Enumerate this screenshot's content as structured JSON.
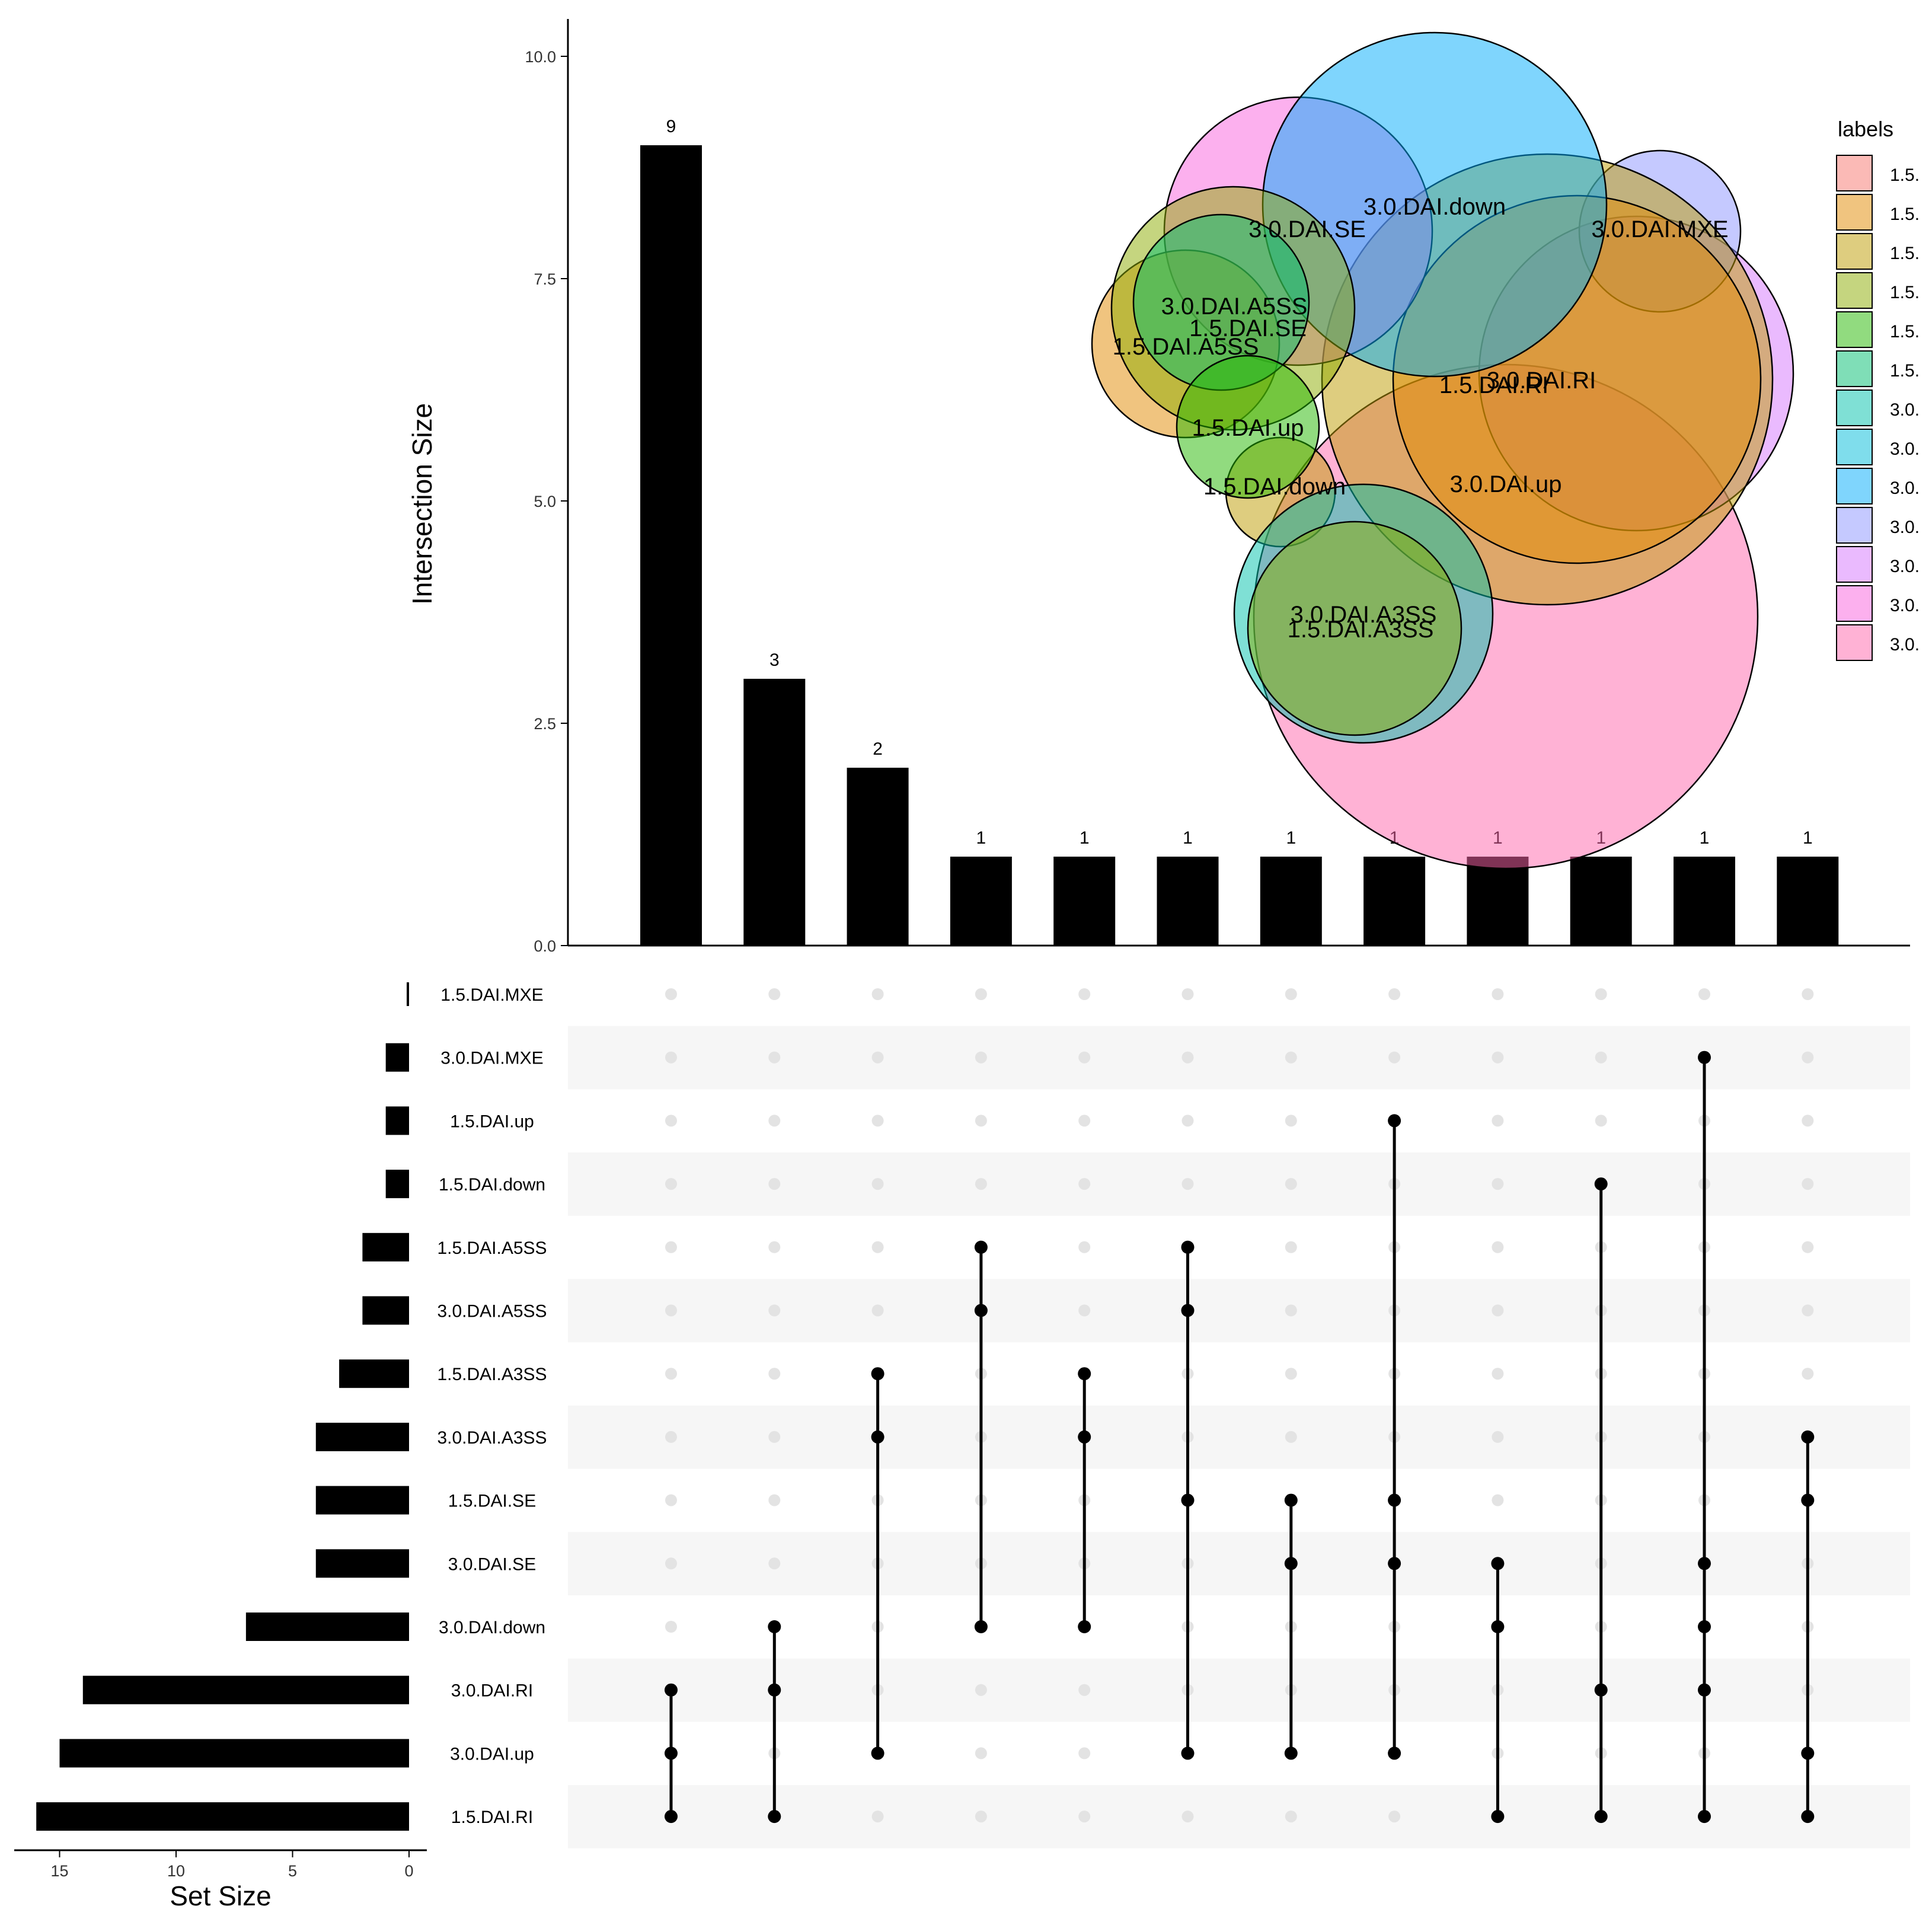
{
  "chart_data": {
    "type": "upset",
    "intersection_axis_label": "Intersection Size",
    "intersection_ylim": [
      0,
      10
    ],
    "intersection_ticks": [
      "0.0",
      "2.5",
      "5.0",
      "7.5",
      "10.0"
    ],
    "setsize_axis_label": "Set Size",
    "setsize_xlim": [
      0,
      17
    ],
    "setsize_ticks": [
      15,
      10,
      5,
      0
    ],
    "sets": [
      {
        "name": "1.5.DAI.MXE",
        "size": 0
      },
      {
        "name": "3.0.DAI.MXE",
        "size": 1
      },
      {
        "name": "1.5.DAI.up",
        "size": 1
      },
      {
        "name": "1.5.DAI.down",
        "size": 1
      },
      {
        "name": "1.5.DAI.A5SS",
        "size": 2
      },
      {
        "name": "3.0.DAI.A5SS",
        "size": 2
      },
      {
        "name": "1.5.DAI.A3SS",
        "size": 3
      },
      {
        "name": "3.0.DAI.A3SS",
        "size": 4
      },
      {
        "name": "1.5.DAI.SE",
        "size": 4
      },
      {
        "name": "3.0.DAI.SE",
        "size": 4
      },
      {
        "name": "3.0.DAI.down",
        "size": 7
      },
      {
        "name": "3.0.DAI.RI",
        "size": 14
      },
      {
        "name": "3.0.DAI.up",
        "size": 15
      },
      {
        "name": "1.5.DAI.RI",
        "size": 16
      }
    ],
    "intersections": [
      {
        "size": 9,
        "label": "9",
        "members": [
          "3.0.DAI.RI",
          "3.0.DAI.up",
          "1.5.DAI.RI"
        ]
      },
      {
        "size": 3,
        "label": "3",
        "members": [
          "3.0.DAI.down",
          "3.0.DAI.RI",
          "1.5.DAI.RI"
        ]
      },
      {
        "size": 2,
        "label": "2",
        "members": [
          "1.5.DAI.A3SS",
          "3.0.DAI.A3SS",
          "3.0.DAI.up"
        ]
      },
      {
        "size": 1,
        "label": "1",
        "members": [
          "1.5.DAI.A5SS",
          "3.0.DAI.A5SS",
          "3.0.DAI.down"
        ]
      },
      {
        "size": 1,
        "label": "1",
        "members": [
          "1.5.DAI.A3SS",
          "3.0.DAI.A3SS",
          "3.0.DAI.down"
        ]
      },
      {
        "size": 1,
        "label": "1",
        "members": [
          "1.5.DAI.A5SS",
          "3.0.DAI.A5SS",
          "1.5.DAI.SE",
          "3.0.DAI.up"
        ]
      },
      {
        "size": 1,
        "label": "1",
        "members": [
          "1.5.DAI.SE",
          "3.0.DAI.SE",
          "3.0.DAI.up"
        ]
      },
      {
        "size": 1,
        "label": "1",
        "members": [
          "1.5.DAI.up",
          "1.5.DAI.SE",
          "3.0.DAI.SE",
          "3.0.DAI.up"
        ]
      },
      {
        "size": 1,
        "label": "1",
        "members": [
          "3.0.DAI.SE",
          "3.0.DAI.down",
          "1.5.DAI.RI"
        ]
      },
      {
        "size": 1,
        "label": "1",
        "members": [
          "1.5.DAI.down",
          "3.0.DAI.RI",
          "1.5.DAI.RI"
        ]
      },
      {
        "size": 1,
        "label": "1",
        "members": [
          "3.0.DAI.MXE",
          "3.0.DAI.SE",
          "3.0.DAI.down",
          "3.0.DAI.RI",
          "1.5.DAI.RI"
        ]
      },
      {
        "size": 1,
        "label": "1",
        "members": [
          "3.0.DAI.A3SS",
          "1.5.DAI.SE",
          "3.0.DAI.up",
          "1.5.DAI.RI"
        ]
      }
    ],
    "venn_inset": {
      "legend_title": "labels",
      "legend_entries": [
        {
          "label": "1.5.",
          "color": "#F8766D"
        },
        {
          "label": "1.5.",
          "color": "#E18A00"
        },
        {
          "label": "1.5.",
          "color": "#BE9C00"
        },
        {
          "label": "1.5.",
          "color": "#8CAB00"
        },
        {
          "label": "1.5.",
          "color": "#24B700"
        },
        {
          "label": "1.5.",
          "color": "#00BE70"
        },
        {
          "label": "3.0.",
          "color": "#00C1AB"
        },
        {
          "label": "3.0.",
          "color": "#00BBDA"
        },
        {
          "label": "3.0.",
          "color": "#00ACFC"
        },
        {
          "label": "3.0.",
          "color": "#8B93FF"
        },
        {
          "label": "3.0.",
          "color": "#D575FE"
        },
        {
          "label": "3.0.",
          "color": "#F962DD"
        },
        {
          "label": "3.0.",
          "color": "#FF65AC"
        }
      ],
      "circles": [
        {
          "label": "3.0.DAI.up",
          "color": "#FF65AC"
        },
        {
          "label": "3.0.DAI.MXE",
          "color": "#D575FE"
        },
        {
          "label": "3.0.DAI.MXE",
          "color": "#8B93FF",
          "show_label": true
        },
        {
          "label": "1.5.DAI.RI",
          "color": "#BE9C00"
        },
        {
          "label": "3.0.DAI.RI",
          "color": "#E18A00"
        },
        {
          "label": "3.0.DAI.SE",
          "color": "#F962DD"
        },
        {
          "label": "3.0.DAI.down",
          "color": "#00ACFC"
        },
        {
          "label": "1.5.DAI.A5SS",
          "color": "#E18A00"
        },
        {
          "label": "1.5.DAI.SE",
          "color": "#8CAB00"
        },
        {
          "label": "3.0.DAI.A5SS",
          "color": "#00BE70"
        },
        {
          "label": "1.5.DAI.down",
          "color": "#BE9C00"
        },
        {
          "label": "1.5.DAI.up",
          "color": "#24B700"
        },
        {
          "label": "3.0.DAI.A3SS",
          "color": "#00C1AB"
        },
        {
          "label": "1.5.DAI.A3SS",
          "color": "#8CAB00"
        }
      ],
      "text_labels": [
        "3.0.DAI.down",
        "3.0.DAI.SE",
        "3.0.DAI.MXE",
        "3.0.DAI.A5SS",
        "1.5.DAI.SE",
        "1.5.DAI.A5SS",
        "3.0.DAI.RI",
        "1.5.DAI.RI",
        "1.5.DAI.up",
        "1.5.DAI.down",
        "3.0.DAI.up",
        "3.0.DAI.A3SS",
        "1.5.DAI.A3SS"
      ]
    }
  }
}
